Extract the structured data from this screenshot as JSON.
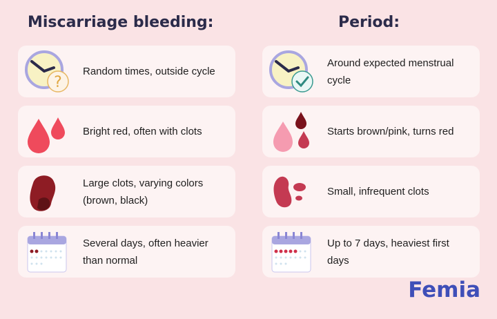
{
  "left": {
    "title": "Miscarriage bleeding:",
    "items": [
      {
        "icon": "clock-question-icon",
        "text": "Random times, outside cycle"
      },
      {
        "icon": "blood-drops-icon",
        "text": "Bright red, often with clots"
      },
      {
        "icon": "large-clot-icon",
        "text": "Large clots, varying colors (brown, black)"
      },
      {
        "icon": "calendar-icon",
        "text": "Several days, often heavier than normal"
      }
    ]
  },
  "right": {
    "title": "Period:",
    "items": [
      {
        "icon": "clock-check-icon",
        "text": "Around expected menstrual cycle"
      },
      {
        "icon": "blood-drops-icon",
        "text": "Starts brown/pink, turns red"
      },
      {
        "icon": "small-clots-icon",
        "text": "Small, infrequent clots"
      },
      {
        "icon": "calendar-icon",
        "text": "Up to 7 days, heaviest first days"
      }
    ]
  },
  "logo": "Femia",
  "colors": {
    "background": "#fae3e5",
    "card": "#fdf3f3",
    "title": "#2b2b4a",
    "logo": "#3f4fb8",
    "bright_red": "#ef4a5c",
    "dark_red": "#8e1c24",
    "pink": "#f59bb0"
  }
}
